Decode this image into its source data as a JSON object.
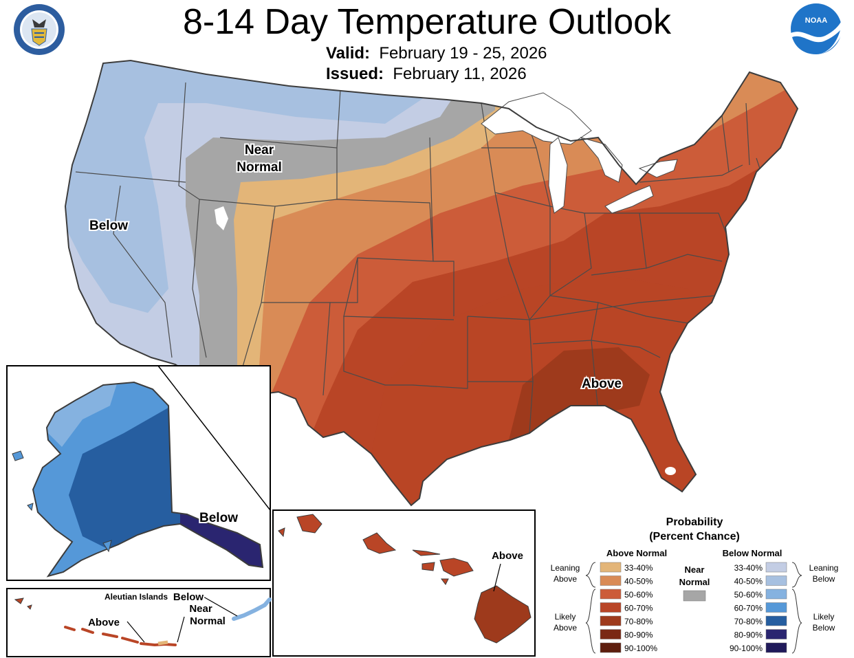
{
  "header": {
    "title": "8-14 Day Temperature Outlook",
    "valid_label": "Valid:",
    "valid_value": "February 19 - 25, 2026",
    "issued_label": "Issued:",
    "issued_value": "February 11, 2026"
  },
  "logos": {
    "left": {
      "icon": "department-of-commerce-seal-icon",
      "text": "DEPARTMENT OF COMMERCE · UNITED STATES OF AMERICA"
    },
    "right": {
      "icon": "noaa-logo-icon",
      "text": "NOAA"
    }
  },
  "map_labels": {
    "near_normal_line1": "Near",
    "near_normal_line2": "Normal",
    "below_west": "Below",
    "above_southeast": "Above",
    "alaska_below": "Below",
    "aleutian_title": "Aleutian Islands",
    "aleutian_below": "Below",
    "aleutian_near1": "Near",
    "aleutian_near2": "Normal",
    "aleutian_above": "Above",
    "hawaii_above": "Above"
  },
  "legend": {
    "title1": "Probability",
    "title2": "(Percent Chance)",
    "above_header": "Above Normal",
    "below_header": "Below Normal",
    "near_normal1": "Near",
    "near_normal2": "Normal",
    "near_color": "#a6a6a6",
    "leaning_above1": "Leaning",
    "leaning_above2": "Above",
    "likely_above1": "Likely",
    "likely_above2": "Above",
    "leaning_below1": "Leaning",
    "leaning_below2": "Below",
    "likely_below1": "Likely",
    "likely_below2": "Below",
    "above": [
      {
        "label": "33-40%",
        "color": "#e3b578"
      },
      {
        "label": "40-50%",
        "color": "#d98b56"
      },
      {
        "label": "50-60%",
        "color": "#cc5c39"
      },
      {
        "label": "60-70%",
        "color": "#b94526"
      },
      {
        "label": "70-80%",
        "color": "#9e3a1c"
      },
      {
        "label": "80-90%",
        "color": "#7a2814"
      },
      {
        "label": "90-100%",
        "color": "#5e1e0e"
      }
    ],
    "below": [
      {
        "label": "33-40%",
        "color": "#c3cde4"
      },
      {
        "label": "40-50%",
        "color": "#a7c0e0"
      },
      {
        "label": "50-60%",
        "color": "#85b2e0"
      },
      {
        "label": "60-70%",
        "color": "#5598d8"
      },
      {
        "label": "70-80%",
        "color": "#265ea0"
      },
      {
        "label": "80-90%",
        "color": "#2a2570"
      },
      {
        "label": "90-100%",
        "color": "#201a5a"
      }
    ]
  }
}
